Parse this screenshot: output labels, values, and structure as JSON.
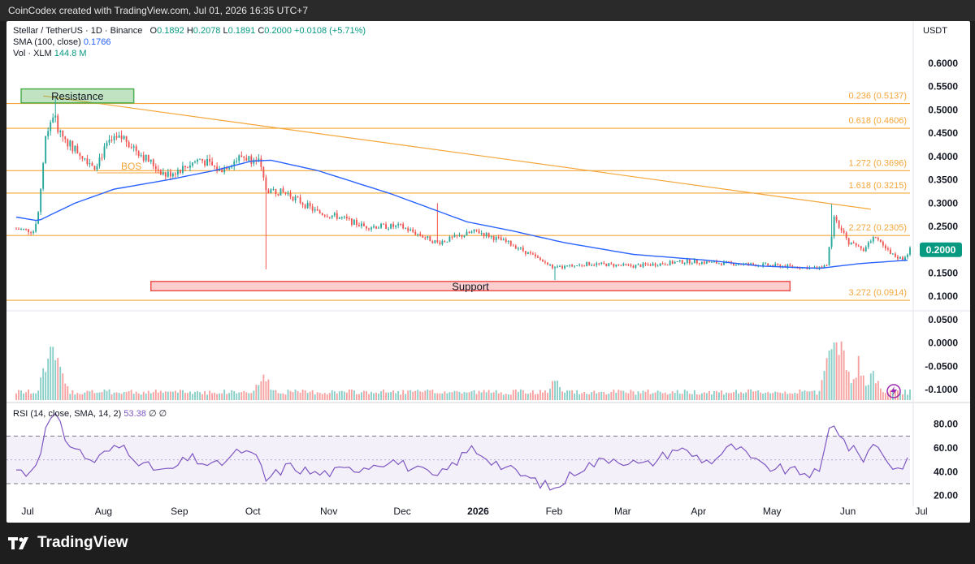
{
  "header": {
    "credit": "CoinCodex created with TradingView.com, Jul 01, 2026 16:35 UTC+7"
  },
  "legend": {
    "symbol": "Stellar / TetherUS · 1D · Binance",
    "o_label": "O",
    "o": "0.1892",
    "h_label": "H",
    "h": "0.2078",
    "l_label": "L",
    "l": "0.1891",
    "c_label": "C",
    "c": "0.2000",
    "change": "+0.0108 (+5.71%)",
    "sma_label": "SMA (100, close)",
    "sma_value": "0.1766",
    "vol_label": "Vol · XLM",
    "vol_value": "144.8 M",
    "rsi_label": "RSI (14, close, SMA, 14, 2)",
    "rsi_value": "53.38",
    "rsi_na": "∅  ∅"
  },
  "currency": "USDT",
  "brand": {
    "name": "TradingView",
    "logo_icon": "tradingview-logo-icon"
  },
  "colors": {
    "up": "#26a69a",
    "down": "#ef5350",
    "sma": "#2962ff",
    "fib": "#f4a63a",
    "rsi": "#7e57c2",
    "support": "#ef5350",
    "resistance": "#4caf50",
    "price_badge": "#089981",
    "alert": "#9c27b0"
  },
  "chart_data": [
    {
      "type": "candlestick",
      "title": "Stellar / TetherUS · 1D · Binance",
      "x_start": "2025-07-01",
      "x_end": "2026-07-01",
      "x_ticks": [
        {
          "date": "2025-07-01",
          "label": "Jul"
        },
        {
          "date": "2025-08-01",
          "label": "Aug"
        },
        {
          "date": "2025-09-01",
          "label": "Sep"
        },
        {
          "date": "2025-10-01",
          "label": "Oct"
        },
        {
          "date": "2025-11-01",
          "label": "Nov"
        },
        {
          "date": "2025-12-01",
          "label": "Dec"
        },
        {
          "date": "2026-01-01",
          "label": "2026"
        },
        {
          "date": "2026-02-01",
          "label": "Feb"
        },
        {
          "date": "2026-03-01",
          "label": "Mar"
        },
        {
          "date": "2026-04-01",
          "label": "Apr"
        },
        {
          "date": "2026-05-01",
          "label": "May"
        },
        {
          "date": "2026-06-01",
          "label": "Jun"
        },
        {
          "date": "2026-07-01",
          "label": "Jul"
        }
      ],
      "y_ticks": [
        "0.6000",
        "0.5500",
        "0.5000",
        "0.4500",
        "0.4000",
        "0.3500",
        "0.3000",
        "0.2500",
        "0.2000",
        "0.1500",
        "0.1000",
        "0.0500",
        "0.0000",
        "-0.0500",
        "-0.1000"
      ],
      "ylim": [
        -0.1,
        0.6
      ],
      "price_path": [
        {
          "date": "2025-07-01",
          "price": 0.245
        },
        {
          "date": "2025-07-08",
          "price": 0.24
        },
        {
          "date": "2025-07-10",
          "price": 0.28
        },
        {
          "date": "2025-07-13",
          "price": 0.44
        },
        {
          "date": "2025-07-16",
          "price": 0.49
        },
        {
          "date": "2025-07-19",
          "price": 0.45
        },
        {
          "date": "2025-07-24",
          "price": 0.42
        },
        {
          "date": "2025-08-02",
          "price": 0.38
        },
        {
          "date": "2025-08-08",
          "price": 0.43
        },
        {
          "date": "2025-08-14",
          "price": 0.44
        },
        {
          "date": "2025-08-22",
          "price": 0.4
        },
        {
          "date": "2025-08-31",
          "price": 0.36
        },
        {
          "date": "2025-09-07",
          "price": 0.375
        },
        {
          "date": "2025-09-14",
          "price": 0.395
        },
        {
          "date": "2025-09-22",
          "price": 0.37
        },
        {
          "date": "2025-10-01",
          "price": 0.4
        },
        {
          "date": "2025-10-08",
          "price": 0.39
        },
        {
          "date": "2025-10-11",
          "price": 0.33
        },
        {
          "date": "2025-10-20",
          "price": 0.32
        },
        {
          "date": "2025-11-01",
          "price": 0.28
        },
        {
          "date": "2025-11-10",
          "price": 0.27
        },
        {
          "date": "2025-11-20",
          "price": 0.25
        },
        {
          "date": "2025-12-05",
          "price": 0.25
        },
        {
          "date": "2025-12-20",
          "price": 0.215
        },
        {
          "date": "2026-01-05",
          "price": 0.24
        },
        {
          "date": "2026-01-20",
          "price": 0.21
        },
        {
          "date": "2026-02-06",
          "price": 0.16
        },
        {
          "date": "2026-02-20",
          "price": 0.17
        },
        {
          "date": "2026-03-10",
          "price": 0.165
        },
        {
          "date": "2026-04-01",
          "price": 0.175
        },
        {
          "date": "2026-04-20",
          "price": 0.17
        },
        {
          "date": "2026-05-10",
          "price": 0.165
        },
        {
          "date": "2026-05-25",
          "price": 0.16
        },
        {
          "date": "2026-05-28",
          "price": 0.17
        },
        {
          "date": "2026-05-31",
          "price": 0.265
        },
        {
          "date": "2026-06-06",
          "price": 0.215
        },
        {
          "date": "2026-06-12",
          "price": 0.2
        },
        {
          "date": "2026-06-17",
          "price": 0.23
        },
        {
          "date": "2026-06-23",
          "price": 0.19
        },
        {
          "date": "2026-06-28",
          "price": 0.18
        },
        {
          "date": "2026-07-01",
          "price": 0.2
        }
      ],
      "wicks": [
        {
          "date": "2025-07-17",
          "high": 0.525
        },
        {
          "date": "2025-10-11",
          "low": 0.158
        },
        {
          "date": "2025-12-20",
          "high": 0.3
        },
        {
          "date": "2026-02-06",
          "low": 0.135
        },
        {
          "date": "2026-05-30",
          "high": 0.298
        }
      ],
      "sma_100": [
        {
          "date": "2025-07-01",
          "price": 0.27
        },
        {
          "date": "2025-07-10",
          "price": 0.262
        },
        {
          "date": "2025-07-25",
          "price": 0.3
        },
        {
          "date": "2025-08-10",
          "price": 0.33
        },
        {
          "date": "2025-09-01",
          "price": 0.35
        },
        {
          "date": "2025-09-20",
          "price": 0.37
        },
        {
          "date": "2025-10-05",
          "price": 0.39
        },
        {
          "date": "2025-10-13",
          "price": 0.392
        },
        {
          "date": "2025-11-01",
          "price": 0.37
        },
        {
          "date": "2025-12-01",
          "price": 0.32
        },
        {
          "date": "2026-01-01",
          "price": 0.26
        },
        {
          "date": "2026-01-20",
          "price": 0.24
        },
        {
          "date": "2026-02-10",
          "price": 0.215
        },
        {
          "date": "2026-03-10",
          "price": 0.19
        },
        {
          "date": "2026-04-10",
          "price": 0.177
        },
        {
          "date": "2026-05-01",
          "price": 0.165
        },
        {
          "date": "2026-05-25",
          "price": 0.16
        },
        {
          "date": "2026-06-10",
          "price": 0.17
        },
        {
          "date": "2026-07-01",
          "price": 0.178
        }
      ],
      "fibonacci_levels": [
        {
          "label": "0.236 (0.5137)",
          "price": 0.5137
        },
        {
          "label": "0.618 (0.4606)",
          "price": 0.4606
        },
        {
          "label": "1.272 (0.3696)",
          "price": 0.3696
        },
        {
          "label": "1.618 (0.3215)",
          "price": 0.3215
        },
        {
          "label": "2.272 (0.2305)",
          "price": 0.2305
        },
        {
          "label": "3.272 (0.0914)",
          "price": 0.0914
        }
      ],
      "trendline": {
        "from": {
          "date": "2025-07-12",
          "price": 0.53
        },
        "to": {
          "date": "2026-06-15",
          "price": 0.287
        }
      },
      "annotations": [
        {
          "text": "Resistance",
          "kind": "resistance-zone",
          "date_from": "2025-07-03",
          "date_to": "2025-08-18",
          "price_top": 0.545,
          "price_bottom": 0.515
        },
        {
          "text": "Support",
          "kind": "support-zone",
          "date_from": "2025-08-25",
          "date_to": "2026-05-13",
          "price_top": 0.132,
          "price_bottom": 0.112
        },
        {
          "text": "BOS",
          "kind": "break-of-structure",
          "date_from": "2025-08-03",
          "date_to": "2025-08-31",
          "price": 0.365
        }
      ],
      "last_price": "0.2000"
    },
    {
      "type": "bar",
      "title": "Vol · XLM",
      "volume_bursts": [
        {
          "date": "2025-07-15",
          "level": 0.8
        },
        {
          "date": "2025-07-18",
          "level": 0.55
        },
        {
          "date": "2025-10-10",
          "level": 0.35
        },
        {
          "date": "2026-02-06",
          "level": 0.28
        },
        {
          "date": "2026-05-30",
          "level": 1.0
        },
        {
          "date": "2026-06-03",
          "level": 0.75
        },
        {
          "date": "2026-06-10",
          "level": 0.5
        },
        {
          "date": "2026-06-16",
          "level": 0.4
        }
      ]
    },
    {
      "type": "line",
      "title": "RSI (14, close, SMA, 14, 2)",
      "y_ticks": [
        "80.00",
        "60.00",
        "40.00",
        "20.00"
      ],
      "ylim": [
        15,
        90
      ],
      "bands": {
        "upper": 70,
        "middle": 50,
        "lower": 30
      },
      "rsi_path": [
        {
          "date": "2025-07-01",
          "value": 42
        },
        {
          "date": "2025-07-06",
          "value": 38
        },
        {
          "date": "2025-07-10",
          "value": 52
        },
        {
          "date": "2025-07-14",
          "value": 82
        },
        {
          "date": "2025-07-17",
          "value": 88
        },
        {
          "date": "2025-07-21",
          "value": 68
        },
        {
          "date": "2025-07-25",
          "value": 60
        },
        {
          "date": "2025-08-01",
          "value": 48
        },
        {
          "date": "2025-08-08",
          "value": 58
        },
        {
          "date": "2025-08-14",
          "value": 62
        },
        {
          "date": "2025-08-22",
          "value": 45
        },
        {
          "date": "2025-09-01",
          "value": 40
        },
        {
          "date": "2025-09-10",
          "value": 52
        },
        {
          "date": "2025-09-20",
          "value": 44
        },
        {
          "date": "2025-10-01",
          "value": 58
        },
        {
          "date": "2025-10-08",
          "value": 50
        },
        {
          "date": "2025-10-11",
          "value": 33
        },
        {
          "date": "2025-10-20",
          "value": 45
        },
        {
          "date": "2025-11-01",
          "value": 38
        },
        {
          "date": "2025-11-15",
          "value": 42
        },
        {
          "date": "2025-12-01",
          "value": 50
        },
        {
          "date": "2025-12-20",
          "value": 35
        },
        {
          "date": "2026-01-03",
          "value": 60
        },
        {
          "date": "2026-01-15",
          "value": 45
        },
        {
          "date": "2026-02-06",
          "value": 25
        },
        {
          "date": "2026-02-15",
          "value": 42
        },
        {
          "date": "2026-03-01",
          "value": 52
        },
        {
          "date": "2026-03-15",
          "value": 45
        },
        {
          "date": "2026-03-28",
          "value": 60
        },
        {
          "date": "2026-04-10",
          "value": 48
        },
        {
          "date": "2026-04-20",
          "value": 62
        },
        {
          "date": "2026-05-01",
          "value": 45
        },
        {
          "date": "2026-05-15",
          "value": 40
        },
        {
          "date": "2026-05-25",
          "value": 38
        },
        {
          "date": "2026-05-30",
          "value": 85
        },
        {
          "date": "2026-06-05",
          "value": 62
        },
        {
          "date": "2026-06-12",
          "value": 52
        },
        {
          "date": "2026-06-17",
          "value": 65
        },
        {
          "date": "2026-06-25",
          "value": 40
        },
        {
          "date": "2026-07-01",
          "value": 53
        }
      ]
    }
  ]
}
